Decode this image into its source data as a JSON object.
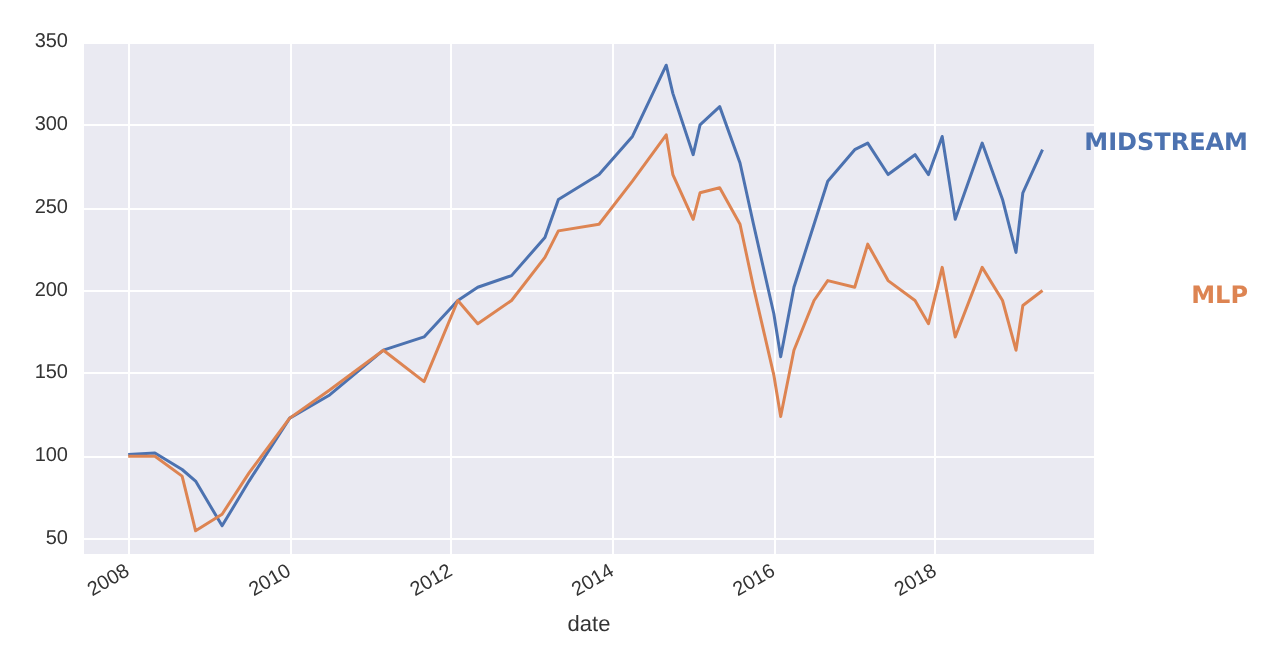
{
  "chart_data": {
    "type": "line",
    "xlabel": "date",
    "x": [
      "2008-01",
      "2008-05",
      "2008-09",
      "2008-11",
      "2009-03",
      "2009-07",
      "2010-01",
      "2010-07",
      "2011-03",
      "2011-09",
      "2012-02",
      "2012-05",
      "2012-10",
      "2013-03",
      "2013-05",
      "2013-11",
      "2014-04",
      "2014-09",
      "2014-10",
      "2015-01",
      "2015-02",
      "2015-05",
      "2015-08",
      "2015-10",
      "2016-01",
      "2016-02",
      "2016-04",
      "2016-07",
      "2016-09",
      "2017-01",
      "2017-03",
      "2017-06",
      "2017-10",
      "2017-12",
      "2018-02",
      "2018-04",
      "2018-08",
      "2018-11",
      "2019-01",
      "2019-02",
      "2019-05"
    ],
    "series": [
      {
        "color": "#4c72b0",
        "values": [
          101,
          102,
          92,
          85,
          58,
          85,
          123,
          137,
          164,
          172,
          194,
          202,
          209,
          232,
          255,
          270,
          293,
          336,
          319,
          282,
          300,
          311,
          277,
          240,
          186,
          160,
          202,
          240,
          266,
          285,
          289,
          270,
          282,
          270,
          293,
          243,
          289,
          255,
          223,
          259,
          285
        ]
      },
      {
        "color": "#dd8452",
        "values": [
          100,
          100,
          88,
          55,
          65,
          90,
          123,
          140,
          164,
          145,
          194,
          180,
          194,
          220,
          236,
          240,
          266,
          294,
          270,
          243,
          259,
          262,
          240,
          202,
          149,
          124,
          164,
          194,
          206,
          202,
          228,
          206,
          194,
          180,
          214,
          172,
          214,
          194,
          164,
          191,
          200
        ]
      }
    ],
    "annotations": [
      "MIDSTREAM",
      "MLP"
    ],
    "xlim": [
      "2007-06-15",
      "2019-12-20"
    ],
    "xticks": [
      "2008",
      "2010",
      "2012",
      "2014",
      "2016",
      "2018"
    ],
    "ylim": [
      41,
      350
    ],
    "yticks": [
      50,
      100,
      150,
      200,
      250,
      300,
      350
    ],
    "grid": true,
    "legend": false
  }
}
